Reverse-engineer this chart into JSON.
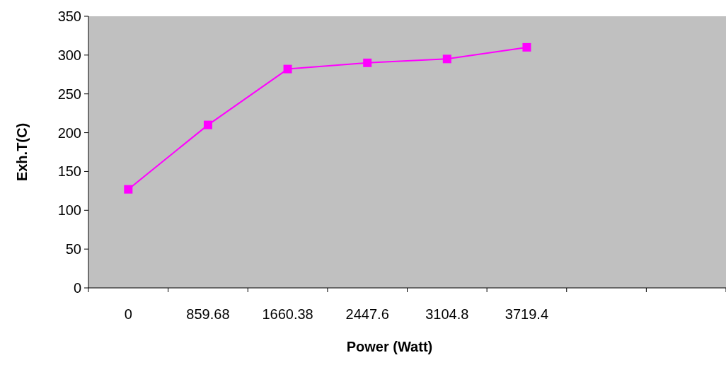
{
  "chart_data": {
    "type": "line",
    "xlabel": "Power (Watt)",
    "ylabel": "Exh.T(C)",
    "categories": [
      "0",
      "859.68",
      "1660.38",
      "2447.6",
      "3104.8",
      "3719.4",
      null,
      null
    ],
    "series": [
      {
        "color": "#ff00ff",
        "values": [
          127,
          210,
          282,
          290,
          295,
          310,
          null,
          null
        ]
      }
    ],
    "ylim": [
      0,
      350
    ],
    "yticks": [
      0,
      50,
      100,
      150,
      200,
      250,
      300,
      350
    ],
    "grid": false,
    "marker": "square",
    "line_style": "solid"
  }
}
